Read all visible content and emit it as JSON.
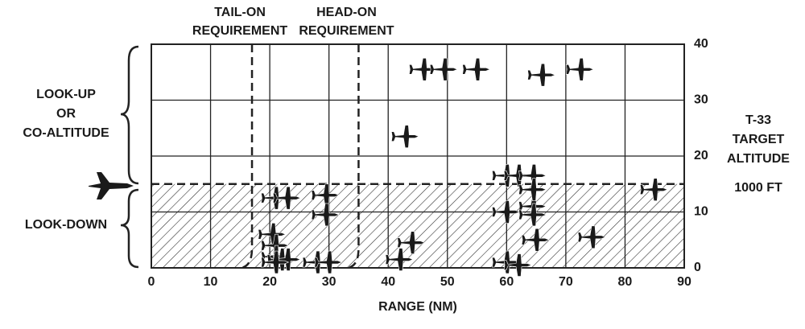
{
  "chart_data": {
    "type": "scatter",
    "x": [
      20.5,
      21,
      21,
      21,
      22,
      23,
      21,
      23,
      28,
      30,
      29.5,
      29.5,
      42,
      44,
      46,
      49.5,
      55,
      43,
      60,
      62,
      64.5,
      60,
      62,
      60,
      64.5,
      64.5,
      64.5,
      65,
      66,
      72.5,
      74.5,
      85
    ],
    "values": [
      6,
      4,
      2,
      12.5,
      1.5,
      1.5,
      1,
      12.5,
      1,
      1,
      13,
      9.5,
      1.5,
      4.5,
      35.5,
      35.5,
      35.5,
      23.5,
      16.5,
      16.5,
      16.5,
      1,
      0.5,
      10,
      11,
      14,
      9.5,
      5,
      34.5,
      35.5,
      5.5,
      14
    ],
    "color": "#1a1a1a",
    "xlim": [
      0,
      90
    ],
    "xticks": [
      0,
      10,
      20,
      30,
      40,
      50,
      60,
      70,
      80,
      90
    ],
    "ylim": [
      0,
      40
    ],
    "yticks": [
      0,
      10,
      20,
      30,
      40
    ],
    "grid": true,
    "x_label": "RANGE (NM)",
    "y_label": [
      "T-33",
      "TARGET",
      "ALTITUDE",
      "1000 FT"
    ],
    "requirements": [
      {
        "label": [
          "TAIL-ON",
          "REQUIREMENT"
        ],
        "x": 17
      },
      {
        "label": [
          "HEAD-ON",
          "REQUIREMENT"
        ],
        "x": 35
      }
    ],
    "look_down_ceiling": 15,
    "regions": {
      "upper": [
        "LOOK-UP",
        "OR",
        "CO-ALTITUDE"
      ],
      "lower": "LOOK-DOWN"
    }
  }
}
